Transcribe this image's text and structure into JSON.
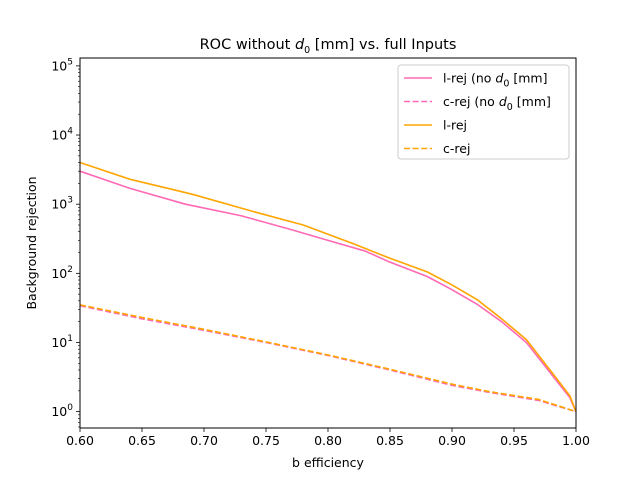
{
  "chart_data": {
    "type": "line",
    "title": {
      "prefix": "ROC without ",
      "var": "d",
      "sub": "0",
      "suffix": " [mm] vs. full Inputs"
    },
    "xlabel": "b efficiency",
    "ylabel": "Background rejection",
    "xlim": [
      0.6,
      1.0
    ],
    "ylim": [
      0.58,
      130000
    ],
    "yscale": "log",
    "grid": false,
    "legend_position": "top-right",
    "x_ticks": [
      "0.60",
      "0.65",
      "0.70",
      "0.75",
      "0.80",
      "0.85",
      "0.90",
      "0.95",
      "1.00"
    ],
    "y_ticks": [
      {
        "value": 1,
        "base": "10",
        "exp": "0"
      },
      {
        "value": 10,
        "base": "10",
        "exp": "1"
      },
      {
        "value": 100,
        "base": "10",
        "exp": "2"
      },
      {
        "value": 1000,
        "base": "10",
        "exp": "3"
      },
      {
        "value": 10000,
        "base": "10",
        "exp": "4"
      },
      {
        "value": 100000,
        "base": "10",
        "exp": "5"
      }
    ],
    "series": [
      {
        "name": "l-rej (no d0 [mm]",
        "legend": {
          "prefix": "l-rej (no ",
          "var": "d",
          "sub": "0",
          "suffix": " [mm]"
        },
        "color": "#ff69b4",
        "dash": "solid",
        "x": [
          0.6,
          0.64,
          0.685,
          0.73,
          0.77,
          0.8,
          0.83,
          0.85,
          0.88,
          0.9,
          0.92,
          0.94,
          0.96,
          0.98,
          0.995,
          1.0
        ],
        "y": [
          3000,
          1700,
          1000,
          680,
          430,
          300,
          210,
          145,
          90,
          58,
          36,
          20,
          10,
          3.5,
          1.6,
          1.0
        ]
      },
      {
        "name": "c-rej (no d0 [mm]",
        "legend": {
          "prefix": "c-rej (no ",
          "var": "d",
          "sub": "0",
          "suffix": " [mm]"
        },
        "color": "#ff69b4",
        "dash": "dashed",
        "x": [
          0.6,
          0.65,
          0.7,
          0.75,
          0.8,
          0.85,
          0.9,
          0.93,
          0.97,
          1.0
        ],
        "y": [
          34,
          22,
          15,
          10,
          6.5,
          4.0,
          2.4,
          1.9,
          1.45,
          1.0
        ]
      },
      {
        "name": "l-rej",
        "legend": {
          "prefix": "l-rej",
          "var": "",
          "sub": "",
          "suffix": ""
        },
        "color": "#ffa500",
        "dash": "solid",
        "x": [
          0.6,
          0.64,
          0.69,
          0.74,
          0.78,
          0.82,
          0.85,
          0.88,
          0.9,
          0.92,
          0.94,
          0.96,
          0.98,
          0.995,
          1.0
        ],
        "y": [
          4000,
          2300,
          1400,
          780,
          500,
          270,
          165,
          105,
          68,
          42,
          22,
          11,
          3.8,
          1.7,
          1.0
        ]
      },
      {
        "name": "c-rej",
        "legend": {
          "prefix": "c-rej",
          "var": "",
          "sub": "",
          "suffix": ""
        },
        "color": "#ffa500",
        "dash": "dashed",
        "x": [
          0.6,
          0.65,
          0.7,
          0.75,
          0.8,
          0.85,
          0.9,
          0.93,
          0.97,
          1.0
        ],
        "y": [
          35,
          23,
          15.5,
          10.2,
          6.6,
          4.1,
          2.5,
          1.95,
          1.5,
          1.0
        ]
      }
    ]
  }
}
